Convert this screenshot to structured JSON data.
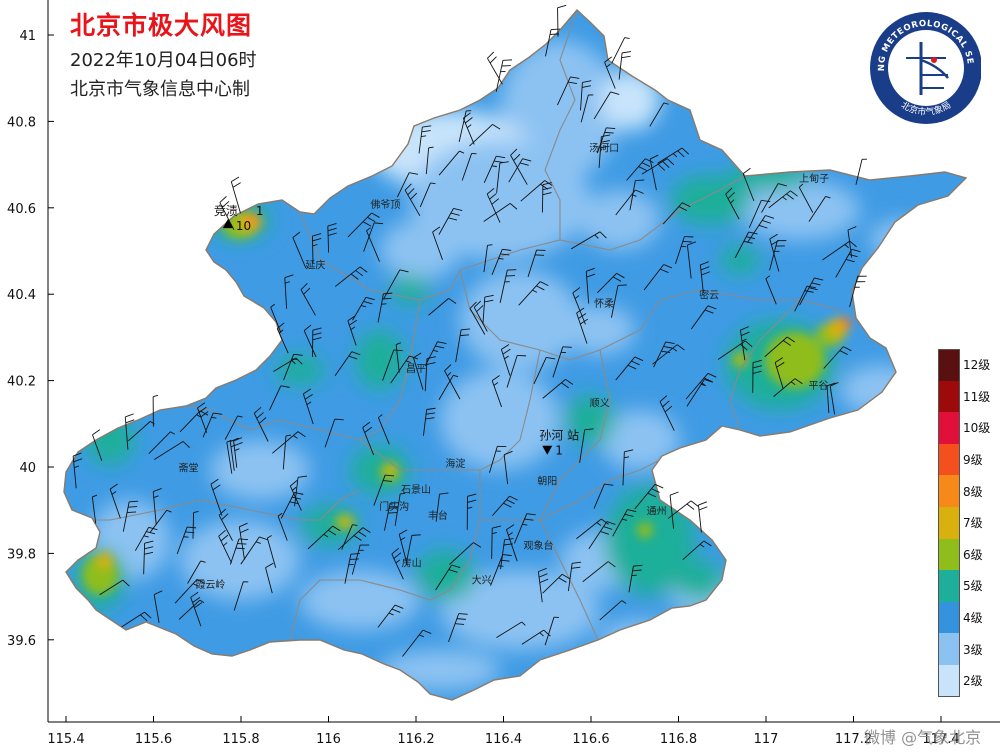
{
  "title": "北京市极大风图",
  "date_line": "2022年10月04日06时",
  "source_line": "北京市气象信息中心制",
  "logo": {
    "ring_text": "BEIJING METEOROLOGICAL SERVICE",
    "bottom_text": "北京市气象局"
  },
  "watermark": "微博 @气象北京",
  "axes": {
    "lon_ticks": [
      "115.4",
      "115.6",
      "115.8",
      "116",
      "116.2",
      "116.4",
      "116.6",
      "116.8",
      "117",
      "117.2",
      "117.4"
    ],
    "lat_ticks": [
      "41",
      "40.8",
      "40.6",
      "40.4",
      "40.2",
      "40",
      "39.8",
      "39.6"
    ]
  },
  "legend": [
    {
      "label": "12级",
      "color": "#5a1010"
    },
    {
      "label": "11级",
      "color": "#9c0a0a"
    },
    {
      "label": "10级",
      "color": "#e0103a"
    },
    {
      "label": "9级",
      "color": "#f4501e"
    },
    {
      "label": "8级",
      "color": "#f7891a"
    },
    {
      "label": "7级",
      "color": "#d9b00e"
    },
    {
      "label": "6级",
      "color": "#8fbd1c"
    },
    {
      "label": "5级",
      "color": "#1eaf9a"
    },
    {
      "label": "4级",
      "color": "#3593dd"
    },
    {
      "label": "3级",
      "color": "#8cc2f2"
    },
    {
      "label": "2级",
      "color": "#c8e4fb"
    }
  ],
  "places": [
    {
      "name": "汤河口",
      "lon": 116.63,
      "lat": 40.73
    },
    {
      "name": "上甸子",
      "lon": 117.11,
      "lat": 40.66
    },
    {
      "name": "佛爷顶",
      "lon": 116.13,
      "lat": 40.6
    },
    {
      "name": "延庆",
      "lon": 115.97,
      "lat": 40.46
    },
    {
      "name": "怀柔",
      "lon": 116.63,
      "lat": 40.37
    },
    {
      "name": "密云",
      "lon": 116.87,
      "lat": 40.39
    },
    {
      "name": "昌平",
      "lon": 116.2,
      "lat": 40.22
    },
    {
      "name": "平谷",
      "lon": 117.12,
      "lat": 40.18
    },
    {
      "name": "顺义",
      "lon": 116.62,
      "lat": 40.14
    },
    {
      "name": "海淀",
      "lon": 116.29,
      "lat": 40.0
    },
    {
      "name": "斋堂",
      "lon": 115.68,
      "lat": 39.99
    },
    {
      "name": "石景山",
      "lon": 116.2,
      "lat": 39.94
    },
    {
      "name": "朝阳",
      "lon": 116.5,
      "lat": 39.96
    },
    {
      "name": "门头沟",
      "lon": 116.15,
      "lat": 39.9
    },
    {
      "name": "丰台",
      "lon": 116.25,
      "lat": 39.88
    },
    {
      "name": "通州",
      "lon": 116.75,
      "lat": 39.89
    },
    {
      "name": "观象台",
      "lon": 116.48,
      "lat": 39.81
    },
    {
      "name": "房山",
      "lon": 116.19,
      "lat": 39.77
    },
    {
      "name": "大兴",
      "lon": 116.35,
      "lat": 39.73
    },
    {
      "name": "霞云岭",
      "lon": 115.73,
      "lat": 39.72
    }
  ],
  "stations": [
    {
      "name": "竞渍",
      "value": "10",
      "lon": 115.77,
      "lat": 40.56,
      "marker": "up",
      "value_text": "1"
    },
    {
      "name": "孙河 站",
      "value": "1",
      "lon": 116.5,
      "lat": 40.04,
      "marker": "down",
      "value_text": ""
    }
  ]
}
